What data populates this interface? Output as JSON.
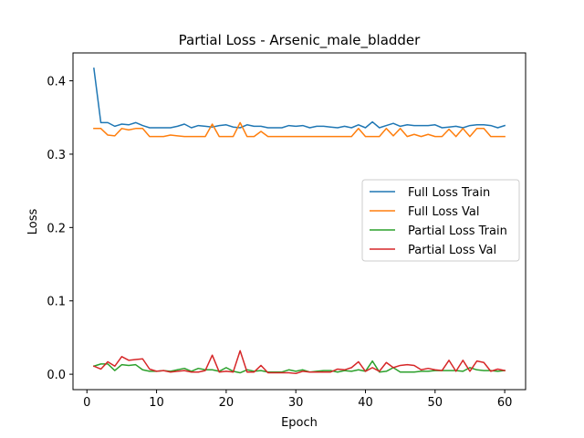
{
  "chart_data": {
    "type": "line",
    "title": "Partial Loss - Arsenic_male_bladder",
    "xlabel": "Epoch",
    "ylabel": "Loss",
    "xlim": [
      -2,
      63
    ],
    "ylim": [
      -0.021,
      0.438
    ],
    "xticks": [
      0,
      10,
      20,
      30,
      40,
      50,
      60
    ],
    "yticks": [
      0.0,
      0.1,
      0.2,
      0.3,
      0.4
    ],
    "ytick_labels": [
      "0.0",
      "0.1",
      "0.2",
      "0.3",
      "0.4"
    ],
    "grid": false,
    "legend_position": "center-right",
    "x": [
      1,
      2,
      3,
      4,
      5,
      6,
      7,
      8,
      9,
      10,
      11,
      12,
      13,
      14,
      15,
      16,
      17,
      18,
      19,
      20,
      21,
      22,
      23,
      24,
      25,
      26,
      27,
      28,
      29,
      30,
      31,
      32,
      33,
      34,
      35,
      36,
      37,
      38,
      39,
      40,
      41,
      42,
      43,
      44,
      45,
      46,
      47,
      48,
      49,
      50,
      51,
      52,
      53,
      54,
      55,
      56,
      57,
      58,
      59,
      60
    ],
    "series": [
      {
        "name": "Full Loss Train",
        "color": "#1f77b4",
        "values": [
          0.417,
          0.343,
          0.343,
          0.338,
          0.341,
          0.34,
          0.343,
          0.339,
          0.336,
          0.336,
          0.336,
          0.336,
          0.338,
          0.341,
          0.336,
          0.339,
          0.338,
          0.337,
          0.339,
          0.34,
          0.337,
          0.336,
          0.34,
          0.338,
          0.338,
          0.336,
          0.336,
          0.336,
          0.339,
          0.338,
          0.339,
          0.336,
          0.338,
          0.338,
          0.337,
          0.336,
          0.338,
          0.336,
          0.34,
          0.336,
          0.344,
          0.336,
          0.339,
          0.342,
          0.338,
          0.34,
          0.339,
          0.339,
          0.339,
          0.34,
          0.336,
          0.337,
          0.338,
          0.336,
          0.339,
          0.34,
          0.34,
          0.339,
          0.336,
          0.339
        ]
      },
      {
        "name": "Full Loss Val",
        "color": "#ff7f0e",
        "values": [
          0.335,
          0.335,
          0.326,
          0.325,
          0.335,
          0.333,
          0.335,
          0.335,
          0.324,
          0.324,
          0.324,
          0.326,
          0.325,
          0.324,
          0.324,
          0.324,
          0.324,
          0.341,
          0.324,
          0.324,
          0.324,
          0.343,
          0.324,
          0.324,
          0.331,
          0.324,
          0.324,
          0.324,
          0.324,
          0.324,
          0.324,
          0.324,
          0.324,
          0.324,
          0.324,
          0.324,
          0.324,
          0.324,
          0.335,
          0.324,
          0.324,
          0.324,
          0.335,
          0.325,
          0.335,
          0.324,
          0.327,
          0.324,
          0.327,
          0.324,
          0.324,
          0.334,
          0.324,
          0.335,
          0.324,
          0.335,
          0.335,
          0.324,
          0.324,
          0.324
        ]
      },
      {
        "name": "Partial Loss Train",
        "color": "#2ca02c",
        "values": [
          0.011,
          0.014,
          0.014,
          0.005,
          0.013,
          0.012,
          0.013,
          0.006,
          0.004,
          0.004,
          0.005,
          0.004,
          0.006,
          0.008,
          0.004,
          0.008,
          0.006,
          0.006,
          0.004,
          0.009,
          0.004,
          0.002,
          0.006,
          0.004,
          0.005,
          0.003,
          0.003,
          0.003,
          0.006,
          0.004,
          0.006,
          0.003,
          0.004,
          0.005,
          0.005,
          0.003,
          0.005,
          0.004,
          0.006,
          0.004,
          0.018,
          0.003,
          0.004,
          0.009,
          0.003,
          0.003,
          0.003,
          0.004,
          0.004,
          0.005,
          0.005,
          0.005,
          0.005,
          0.004,
          0.009,
          0.006,
          0.005,
          0.005,
          0.004,
          0.005
        ]
      },
      {
        "name": "Partial Loss Val",
        "color": "#d62728",
        "values": [
          0.011,
          0.007,
          0.017,
          0.011,
          0.024,
          0.019,
          0.02,
          0.021,
          0.007,
          0.004,
          0.005,
          0.003,
          0.004,
          0.005,
          0.003,
          0.003,
          0.005,
          0.026,
          0.003,
          0.004,
          0.003,
          0.032,
          0.003,
          0.003,
          0.012,
          0.002,
          0.002,
          0.002,
          0.002,
          0.001,
          0.004,
          0.003,
          0.003,
          0.003,
          0.003,
          0.007,
          0.006,
          0.009,
          0.017,
          0.004,
          0.009,
          0.004,
          0.016,
          0.009,
          0.012,
          0.013,
          0.012,
          0.006,
          0.008,
          0.006,
          0.005,
          0.019,
          0.004,
          0.019,
          0.004,
          0.018,
          0.016,
          0.004,
          0.007,
          0.005
        ]
      }
    ]
  }
}
